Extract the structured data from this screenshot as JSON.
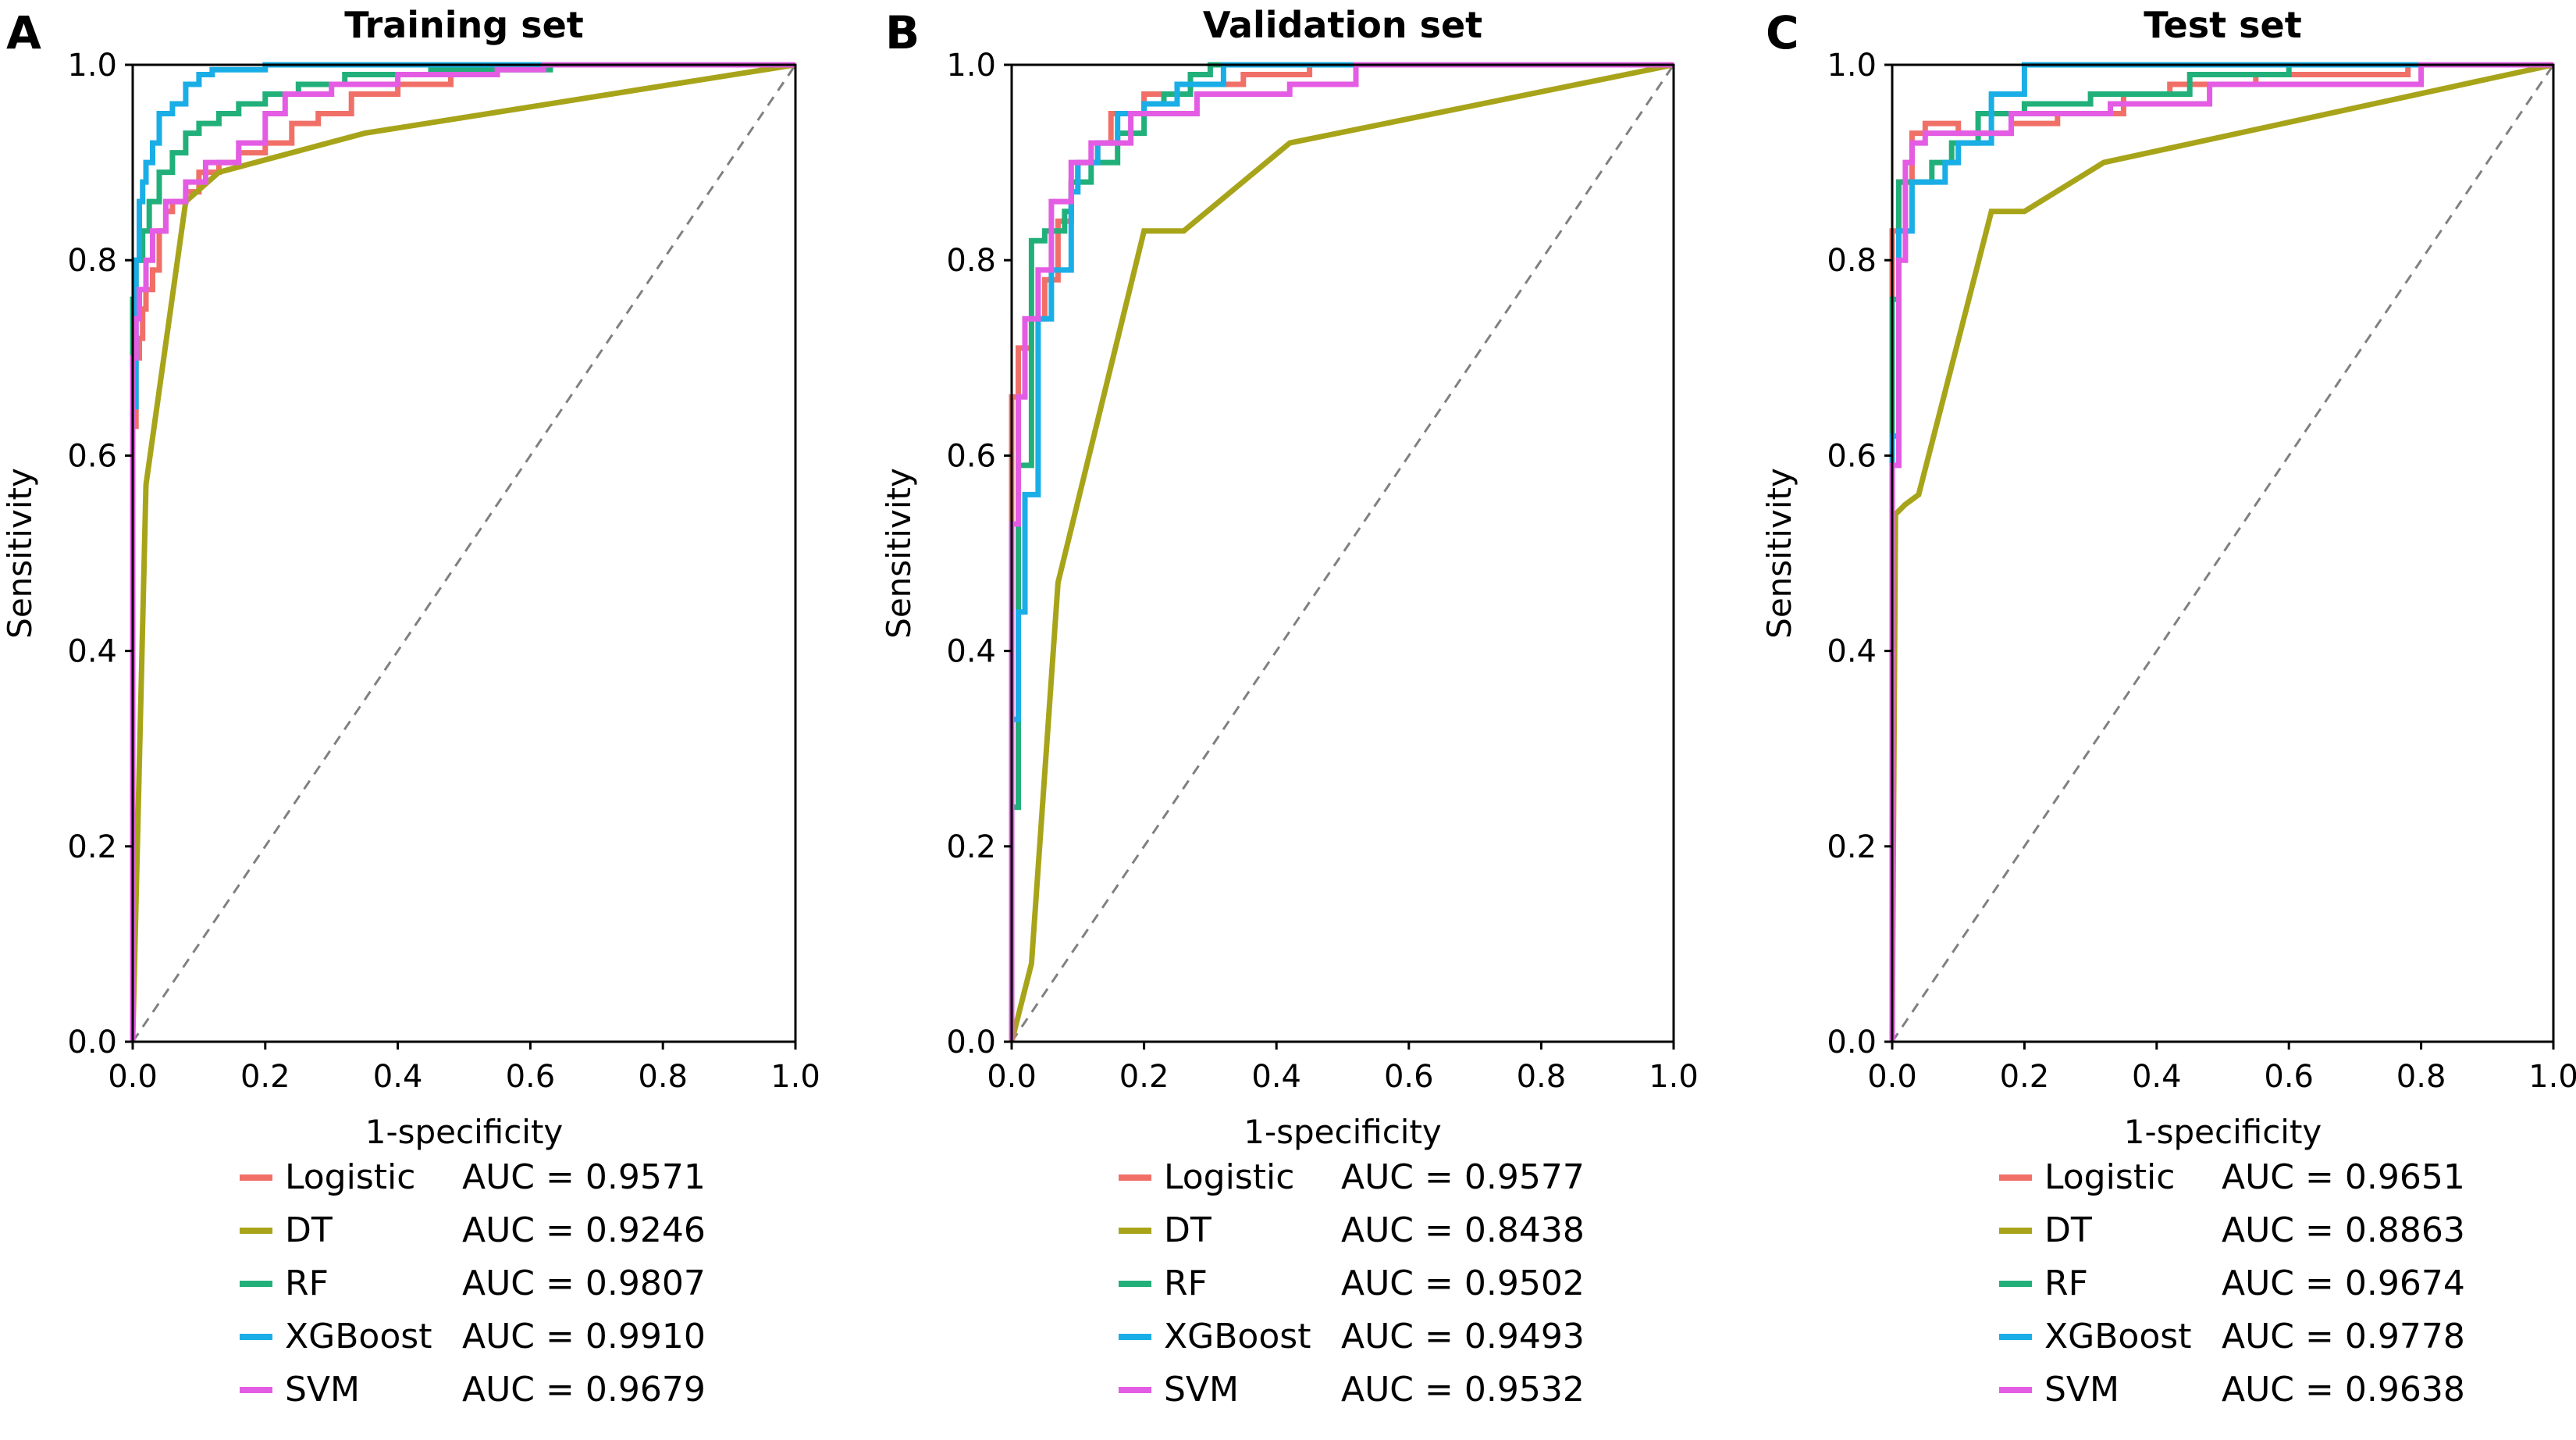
{
  "colors": {
    "Logistic": "#F07068",
    "DT": "#A8A41A",
    "RF": "#22B07A",
    "XGBoost": "#1AAEE6",
    "SVM": "#E35CE3",
    "diagonal": "#808080",
    "frame": "#000000"
  },
  "chart_data": [
    {
      "type": "line",
      "panel_label": "A",
      "title": "Training set",
      "xlabel": "1-specificity",
      "ylabel": "Sensitivity",
      "xlim": [
        0,
        1
      ],
      "ylim": [
        0,
        1
      ],
      "xticks": [
        "0.0",
        "0.2",
        "0.4",
        "0.6",
        "0.8",
        "1.0"
      ],
      "yticks": [
        "0.0",
        "0.2",
        "0.4",
        "0.6",
        "0.8",
        "1.0"
      ],
      "grid": false,
      "reference_line": "diagonal",
      "legend_position": "bottom",
      "series": [
        {
          "name": "Logistic",
          "auc": "AUC = 0.9571",
          "x": [
            0,
            0,
            0.005,
            0.005,
            0.01,
            0.01,
            0.015,
            0.015,
            0.02,
            0.02,
            0.03,
            0.03,
            0.04,
            0.04,
            0.05,
            0.05,
            0.06,
            0.06,
            0.08,
            0.08,
            0.1,
            0.1,
            0.13,
            0.13,
            0.16,
            0.16,
            0.2,
            0.2,
            0.24,
            0.24,
            0.28,
            0.28,
            0.33,
            0.33,
            0.4,
            0.4,
            0.48,
            0.48,
            0.55,
            0.55,
            1
          ],
          "y": [
            0,
            0.63,
            0.63,
            0.7,
            0.7,
            0.72,
            0.72,
            0.75,
            0.75,
            0.77,
            0.77,
            0.79,
            0.79,
            0.83,
            0.83,
            0.85,
            0.85,
            0.86,
            0.86,
            0.87,
            0.87,
            0.89,
            0.89,
            0.9,
            0.9,
            0.91,
            0.91,
            0.92,
            0.92,
            0.94,
            0.94,
            0.95,
            0.95,
            0.97,
            0.97,
            0.98,
            0.98,
            0.99,
            0.99,
            1,
            1
          ]
        },
        {
          "name": "DT",
          "auc": "AUC = 0.9246",
          "x": [
            0,
            0.02,
            0.08,
            0.13,
            0.35,
            1
          ],
          "y": [
            0,
            0.57,
            0.86,
            0.89,
            0.93,
            1
          ]
        },
        {
          "name": "RF",
          "auc": "AUC = 0.9807",
          "x": [
            0,
            0,
            0.005,
            0.005,
            0.015,
            0.015,
            0.025,
            0.025,
            0.04,
            0.04,
            0.06,
            0.06,
            0.08,
            0.08,
            0.1,
            0.1,
            0.13,
            0.13,
            0.16,
            0.16,
            0.2,
            0.2,
            0.25,
            0.25,
            0.32,
            0.32,
            0.45,
            0.45,
            0.63,
            0.63,
            1
          ],
          "y": [
            0,
            0.76,
            0.76,
            0.8,
            0.8,
            0.83,
            0.83,
            0.86,
            0.86,
            0.89,
            0.89,
            0.91,
            0.91,
            0.93,
            0.93,
            0.94,
            0.94,
            0.95,
            0.95,
            0.96,
            0.96,
            0.97,
            0.97,
            0.98,
            0.98,
            0.99,
            0.99,
            0.995,
            0.995,
            1,
            1
          ]
        },
        {
          "name": "XGBoost",
          "auc": "AUC = 0.9910",
          "x": [
            0,
            0,
            0.005,
            0.005,
            0.01,
            0.01,
            0.015,
            0.015,
            0.02,
            0.02,
            0.03,
            0.03,
            0.04,
            0.04,
            0.06,
            0.06,
            0.08,
            0.08,
            0.1,
            0.1,
            0.12,
            0.12,
            0.2,
            0.2,
            1
          ],
          "y": [
            0,
            0.65,
            0.65,
            0.8,
            0.8,
            0.86,
            0.86,
            0.88,
            0.88,
            0.9,
            0.9,
            0.92,
            0.92,
            0.95,
            0.95,
            0.96,
            0.96,
            0.98,
            0.98,
            0.99,
            0.99,
            0.995,
            0.995,
            1,
            1
          ]
        },
        {
          "name": "SVM",
          "auc": "AUC = 0.9679",
          "x": [
            0,
            0,
            0.005,
            0.005,
            0.01,
            0.01,
            0.02,
            0.02,
            0.03,
            0.03,
            0.05,
            0.05,
            0.08,
            0.08,
            0.11,
            0.11,
            0.16,
            0.16,
            0.2,
            0.2,
            0.23,
            0.23,
            0.3,
            0.3,
            0.4,
            0.4,
            0.55,
            0.55,
            0.62,
            0.62,
            1
          ],
          "y": [
            0,
            0.7,
            0.7,
            0.74,
            0.74,
            0.77,
            0.77,
            0.8,
            0.8,
            0.83,
            0.83,
            0.86,
            0.86,
            0.88,
            0.88,
            0.9,
            0.9,
            0.92,
            0.92,
            0.95,
            0.95,
            0.97,
            0.97,
            0.98,
            0.98,
            0.99,
            0.99,
            0.995,
            0.995,
            1,
            1
          ]
        }
      ]
    },
    {
      "type": "line",
      "panel_label": "B",
      "title": "Validation set",
      "xlabel": "1-specificity",
      "ylabel": "Sensitivity",
      "xlim": [
        0,
        1
      ],
      "ylim": [
        0,
        1
      ],
      "xticks": [
        "0.0",
        "0.2",
        "0.4",
        "0.6",
        "0.8",
        "1.0"
      ],
      "yticks": [
        "0.0",
        "0.2",
        "0.4",
        "0.6",
        "0.8",
        "1.0"
      ],
      "grid": false,
      "reference_line": "diagonal",
      "legend_position": "bottom",
      "series": [
        {
          "name": "Logistic",
          "auc": "AUC = 0.9577",
          "x": [
            0,
            0,
            0.01,
            0.01,
            0.03,
            0.03,
            0.05,
            0.05,
            0.07,
            0.07,
            0.09,
            0.09,
            0.1,
            0.1,
            0.13,
            0.13,
            0.15,
            0.15,
            0.2,
            0.2,
            0.25,
            0.25,
            0.35,
            0.35,
            0.45,
            0.45,
            1
          ],
          "y": [
            0,
            0.66,
            0.66,
            0.71,
            0.71,
            0.74,
            0.74,
            0.78,
            0.78,
            0.84,
            0.84,
            0.88,
            0.88,
            0.9,
            0.9,
            0.92,
            0.92,
            0.95,
            0.95,
            0.97,
            0.97,
            0.98,
            0.98,
            0.99,
            0.99,
            1,
            1
          ]
        },
        {
          "name": "DT",
          "auc": "AUC = 0.8438",
          "x": [
            0,
            0.03,
            0.07,
            0.2,
            0.26,
            0.42,
            1
          ],
          "y": [
            0,
            0.08,
            0.47,
            0.83,
            0.83,
            0.92,
            1
          ]
        },
        {
          "name": "RF",
          "auc": "AUC = 0.9502",
          "x": [
            0,
            0,
            0.01,
            0.01,
            0.03,
            0.03,
            0.05,
            0.05,
            0.08,
            0.08,
            0.09,
            0.09,
            0.12,
            0.12,
            0.16,
            0.16,
            0.2,
            0.2,
            0.23,
            0.23,
            0.27,
            0.27,
            0.3,
            0.3,
            1
          ],
          "y": [
            0,
            0.24,
            0.24,
            0.59,
            0.59,
            0.82,
            0.82,
            0.83,
            0.83,
            0.85,
            0.85,
            0.88,
            0.88,
            0.9,
            0.9,
            0.93,
            0.93,
            0.96,
            0.96,
            0.97,
            0.97,
            0.99,
            0.99,
            1,
            1
          ]
        },
        {
          "name": "XGBoost",
          "auc": "AUC = 0.9493",
          "x": [
            0,
            0,
            0.01,
            0.01,
            0.02,
            0.02,
            0.04,
            0.04,
            0.06,
            0.06,
            0.09,
            0.09,
            0.1,
            0.1,
            0.13,
            0.13,
            0.16,
            0.16,
            0.2,
            0.2,
            0.25,
            0.25,
            0.32,
            0.32,
            1
          ],
          "y": [
            0,
            0.33,
            0.33,
            0.44,
            0.44,
            0.56,
            0.56,
            0.74,
            0.74,
            0.79,
            0.79,
            0.87,
            0.87,
            0.9,
            0.9,
            0.92,
            0.92,
            0.95,
            0.95,
            0.96,
            0.96,
            0.98,
            0.98,
            1,
            1
          ]
        },
        {
          "name": "SVM",
          "auc": "AUC = 0.9532",
          "x": [
            0,
            0,
            0.01,
            0.01,
            0.02,
            0.02,
            0.04,
            0.04,
            0.06,
            0.06,
            0.09,
            0.09,
            0.12,
            0.12,
            0.18,
            0.18,
            0.28,
            0.28,
            0.42,
            0.42,
            0.52,
            0.52,
            1
          ],
          "y": [
            0,
            0.53,
            0.53,
            0.66,
            0.66,
            0.74,
            0.74,
            0.79,
            0.79,
            0.86,
            0.86,
            0.9,
            0.9,
            0.92,
            0.92,
            0.95,
            0.95,
            0.97,
            0.97,
            0.98,
            0.98,
            1,
            1
          ]
        }
      ]
    },
    {
      "type": "line",
      "panel_label": "C",
      "title": "Test set",
      "xlabel": "1-specificity",
      "ylabel": "Sensitivity",
      "xlim": [
        0,
        1
      ],
      "ylim": [
        0,
        1
      ],
      "xticks": [
        "0.0",
        "0.2",
        "0.4",
        "0.6",
        "0.8",
        "1.0"
      ],
      "yticks": [
        "0.0",
        "0.2",
        "0.4",
        "0.6",
        "0.8",
        "1.0"
      ],
      "grid": false,
      "reference_line": "diagonal",
      "legend_position": "bottom",
      "series": [
        {
          "name": "Logistic",
          "auc": "AUC = 0.9651",
          "x": [
            0,
            0,
            0.01,
            0.01,
            0.03,
            0.03,
            0.05,
            0.05,
            0.1,
            0.1,
            0.18,
            0.18,
            0.25,
            0.25,
            0.35,
            0.35,
            0.42,
            0.42,
            0.55,
            0.55,
            0.78,
            0.78,
            1
          ],
          "y": [
            0,
            0.83,
            0.83,
            0.88,
            0.88,
            0.93,
            0.93,
            0.94,
            0.94,
            0.93,
            0.93,
            0.94,
            0.94,
            0.95,
            0.95,
            0.97,
            0.97,
            0.98,
            0.98,
            0.99,
            0.99,
            1,
            1
          ]
        },
        {
          "name": "DT",
          "auc": "AUC = 0.8863",
          "x": [
            0,
            0.005,
            0.02,
            0.04,
            0.15,
            0.2,
            0.32,
            1
          ],
          "y": [
            0,
            0.54,
            0.55,
            0.56,
            0.85,
            0.85,
            0.9,
            1
          ]
        },
        {
          "name": "RF",
          "auc": "AUC = 0.9674",
          "x": [
            0,
            0,
            0.01,
            0.01,
            0.03,
            0.03,
            0.06,
            0.06,
            0.09,
            0.09,
            0.13,
            0.13,
            0.2,
            0.2,
            0.3,
            0.3,
            0.45,
            0.45,
            0.6,
            0.6,
            1
          ],
          "y": [
            0,
            0.76,
            0.76,
            0.88,
            0.88,
            0.88,
            0.88,
            0.9,
            0.9,
            0.92,
            0.92,
            0.95,
            0.95,
            0.96,
            0.96,
            0.97,
            0.97,
            0.99,
            0.99,
            1,
            1
          ]
        },
        {
          "name": "XGBoost",
          "auc": "AUC = 0.9778",
          "x": [
            0,
            0,
            0.01,
            0.01,
            0.03,
            0.03,
            0.08,
            0.08,
            0.1,
            0.1,
            0.15,
            0.15,
            0.2,
            0.2,
            1
          ],
          "y": [
            0,
            0.62,
            0.62,
            0.83,
            0.83,
            0.88,
            0.88,
            0.9,
            0.9,
            0.92,
            0.92,
            0.97,
            0.97,
            1,
            1
          ]
        },
        {
          "name": "SVM",
          "auc": "AUC = 0.9638",
          "x": [
            0,
            0,
            0.01,
            0.01,
            0.02,
            0.02,
            0.03,
            0.03,
            0.05,
            0.05,
            0.18,
            0.18,
            0.33,
            0.33,
            0.48,
            0.48,
            0.8,
            0.8,
            1
          ],
          "y": [
            0,
            0.59,
            0.59,
            0.8,
            0.8,
            0.9,
            0.9,
            0.92,
            0.92,
            0.93,
            0.93,
            0.95,
            0.95,
            0.96,
            0.96,
            0.98,
            0.98,
            1,
            1
          ]
        }
      ]
    }
  ]
}
